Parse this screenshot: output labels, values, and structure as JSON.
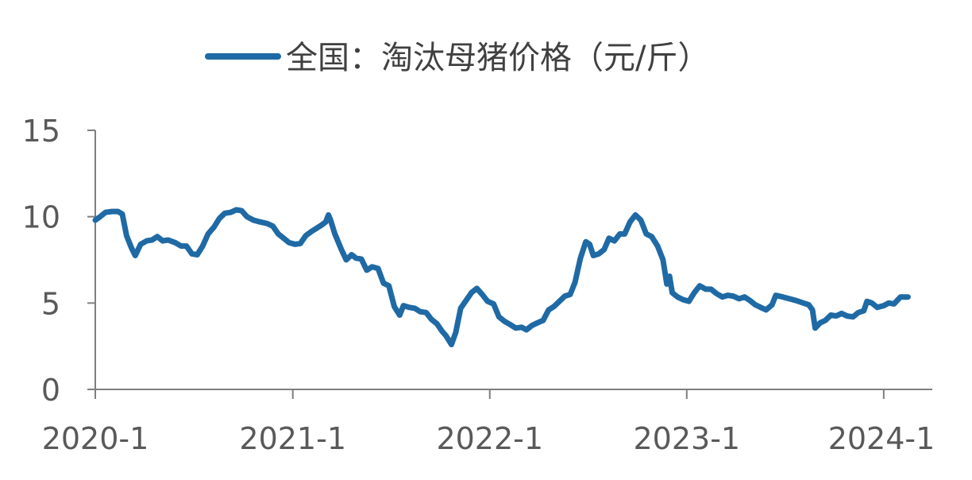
{
  "chart_data": {
    "type": "line",
    "title": "",
    "xlabel": "",
    "ylabel": "",
    "x_ticks": [
      "2020-1",
      "2021-1",
      "2022-1",
      "2023-1",
      "2024-1"
    ],
    "y_ticks": [
      "0",
      "5",
      "10",
      "15"
    ],
    "ylim": [
      0,
      15
    ],
    "xlim": [
      "2020-01-01",
      "2024-03-31"
    ],
    "grid": false,
    "legend_position": "top",
    "series": [
      {
        "name": "全国：淘汰母猪价格（元/斤）",
        "color": "#1F6AA5",
        "points": [
          [
            "2020-01-01",
            9.8
          ],
          [
            "2020-01-10",
            10.0
          ],
          [
            "2020-01-20",
            10.25
          ],
          [
            "2020-02-01",
            10.3
          ],
          [
            "2020-02-12",
            10.3
          ],
          [
            "2020-02-20",
            10.15
          ],
          [
            "2020-02-28",
            8.9
          ],
          [
            "2020-03-08",
            8.2
          ],
          [
            "2020-03-15",
            7.75
          ],
          [
            "2020-03-25",
            8.4
          ],
          [
            "2020-04-05",
            8.6
          ],
          [
            "2020-04-15",
            8.65
          ],
          [
            "2020-04-25",
            8.85
          ],
          [
            "2020-05-05",
            8.6
          ],
          [
            "2020-05-15",
            8.65
          ],
          [
            "2020-05-28",
            8.5
          ],
          [
            "2020-06-08",
            8.3
          ],
          [
            "2020-06-18",
            8.3
          ],
          [
            "2020-06-28",
            7.85
          ],
          [
            "2020-07-08",
            7.8
          ],
          [
            "2020-07-18",
            8.3
          ],
          [
            "2020-07-28",
            9.0
          ],
          [
            "2020-08-08",
            9.4
          ],
          [
            "2020-08-18",
            9.9
          ],
          [
            "2020-08-28",
            10.2
          ],
          [
            "2020-09-08",
            10.25
          ],
          [
            "2020-09-18",
            10.4
          ],
          [
            "2020-09-28",
            10.35
          ],
          [
            "2020-10-08",
            10.0
          ],
          [
            "2020-10-20",
            9.8
          ],
          [
            "2020-11-01",
            9.7
          ],
          [
            "2020-11-15",
            9.6
          ],
          [
            "2020-11-25",
            9.45
          ],
          [
            "2020-12-05",
            9.0
          ],
          [
            "2020-12-15",
            8.75
          ],
          [
            "2020-12-25",
            8.5
          ],
          [
            "2021-01-05",
            8.4
          ],
          [
            "2021-01-15",
            8.45
          ],
          [
            "2021-01-25",
            8.9
          ],
          [
            "2021-02-05",
            9.15
          ],
          [
            "2021-02-15",
            9.35
          ],
          [
            "2021-02-25",
            9.55
          ],
          [
            "2021-03-03",
            9.7
          ],
          [
            "2021-03-08",
            10.1
          ],
          [
            "2021-03-12",
            9.8
          ],
          [
            "2021-03-20",
            9.0
          ],
          [
            "2021-04-01",
            8.1
          ],
          [
            "2021-04-10",
            7.5
          ],
          [
            "2021-04-20",
            7.8
          ],
          [
            "2021-04-28",
            7.6
          ],
          [
            "2021-05-08",
            7.55
          ],
          [
            "2021-05-18",
            6.9
          ],
          [
            "2021-05-28",
            7.1
          ],
          [
            "2021-06-08",
            7.0
          ],
          [
            "2021-06-18",
            6.15
          ],
          [
            "2021-06-28",
            6.0
          ],
          [
            "2021-07-08",
            4.8
          ],
          [
            "2021-07-18",
            4.3
          ],
          [
            "2021-07-25",
            4.85
          ],
          [
            "2021-08-05",
            4.75
          ],
          [
            "2021-08-15",
            4.7
          ],
          [
            "2021-08-25",
            4.5
          ],
          [
            "2021-09-05",
            4.45
          ],
          [
            "2021-09-15",
            4.05
          ],
          [
            "2021-09-25",
            3.8
          ],
          [
            "2021-10-05",
            3.35
          ],
          [
            "2021-10-12",
            3.1
          ],
          [
            "2021-10-22",
            2.6
          ],
          [
            "2021-10-30",
            3.3
          ],
          [
            "2021-11-08",
            4.7
          ],
          [
            "2021-11-18",
            5.15
          ],
          [
            "2021-11-28",
            5.6
          ],
          [
            "2021-12-08",
            5.85
          ],
          [
            "2021-12-18",
            5.5
          ],
          [
            "2021-12-28",
            5.1
          ],
          [
            "2022-01-08",
            4.95
          ],
          [
            "2022-01-18",
            4.2
          ],
          [
            "2022-01-28",
            3.95
          ],
          [
            "2022-02-08",
            3.75
          ],
          [
            "2022-02-18",
            3.55
          ],
          [
            "2022-03-01",
            3.6
          ],
          [
            "2022-03-10",
            3.45
          ],
          [
            "2022-03-20",
            3.7
          ],
          [
            "2022-03-30",
            3.85
          ],
          [
            "2022-04-10",
            4.0
          ],
          [
            "2022-04-20",
            4.6
          ],
          [
            "2022-04-30",
            4.8
          ],
          [
            "2022-05-10",
            5.1
          ],
          [
            "2022-05-20",
            5.4
          ],
          [
            "2022-05-30",
            5.5
          ],
          [
            "2022-06-08",
            6.2
          ],
          [
            "2022-06-18",
            7.6
          ],
          [
            "2022-06-28",
            8.55
          ],
          [
            "2022-07-05",
            8.4
          ],
          [
            "2022-07-12",
            7.75
          ],
          [
            "2022-07-22",
            7.85
          ],
          [
            "2022-08-01",
            8.1
          ],
          [
            "2022-08-10",
            8.75
          ],
          [
            "2022-08-20",
            8.6
          ],
          [
            "2022-08-30",
            9.0
          ],
          [
            "2022-09-08",
            9.0
          ],
          [
            "2022-09-18",
            9.7
          ],
          [
            "2022-09-28",
            10.1
          ],
          [
            "2022-10-08",
            9.8
          ],
          [
            "2022-10-18",
            9.0
          ],
          [
            "2022-10-28",
            8.85
          ],
          [
            "2022-11-08",
            8.3
          ],
          [
            "2022-11-18",
            7.5
          ],
          [
            "2022-11-25",
            6.1
          ],
          [
            "2022-11-30",
            6.55
          ],
          [
            "2022-12-05",
            5.6
          ],
          [
            "2022-12-15",
            5.35
          ],
          [
            "2022-12-25",
            5.2
          ],
          [
            "2023-01-05",
            5.1
          ],
          [
            "2023-01-15",
            5.6
          ],
          [
            "2023-01-25",
            6.0
          ],
          [
            "2023-02-05",
            5.8
          ],
          [
            "2023-02-15",
            5.8
          ],
          [
            "2023-02-25",
            5.55
          ],
          [
            "2023-03-08",
            5.35
          ],
          [
            "2023-03-18",
            5.45
          ],
          [
            "2023-03-28",
            5.4
          ],
          [
            "2023-04-08",
            5.25
          ],
          [
            "2023-04-18",
            5.35
          ],
          [
            "2023-04-28",
            5.15
          ],
          [
            "2023-05-08",
            4.9
          ],
          [
            "2023-05-18",
            4.75
          ],
          [
            "2023-05-28",
            4.6
          ],
          [
            "2023-06-08",
            4.9
          ],
          [
            "2023-06-15",
            5.45
          ],
          [
            "2023-06-28",
            5.35
          ],
          [
            "2023-07-10",
            5.25
          ],
          [
            "2023-07-22",
            5.15
          ],
          [
            "2023-08-05",
            5.0
          ],
          [
            "2023-08-15",
            4.9
          ],
          [
            "2023-08-22",
            4.6
          ],
          [
            "2023-08-27",
            3.55
          ],
          [
            "2023-09-05",
            3.85
          ],
          [
            "2023-09-15",
            4.0
          ],
          [
            "2023-09-25",
            4.3
          ],
          [
            "2023-10-05",
            4.25
          ],
          [
            "2023-10-15",
            4.4
          ],
          [
            "2023-10-25",
            4.25
          ],
          [
            "2023-11-05",
            4.2
          ],
          [
            "2023-11-15",
            4.45
          ],
          [
            "2023-11-25",
            4.55
          ],
          [
            "2023-12-01",
            5.1
          ],
          [
            "2023-12-10",
            5.0
          ],
          [
            "2023-12-20",
            4.75
          ],
          [
            "2024-01-01",
            4.85
          ],
          [
            "2024-01-10",
            5.0
          ],
          [
            "2024-01-20",
            4.95
          ],
          [
            "2024-02-01",
            5.35
          ],
          [
            "2024-02-15",
            5.35
          ]
        ]
      }
    ]
  }
}
